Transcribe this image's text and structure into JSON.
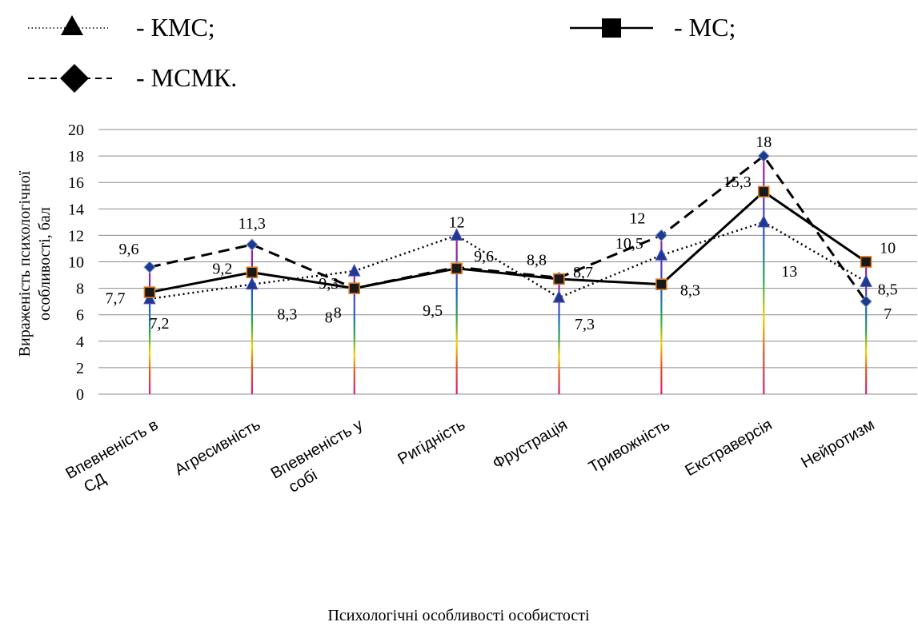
{
  "chart_data": {
    "type": "line",
    "title": "",
    "xlabel": "Психологічні особливості особистості",
    "ylabel_lines": [
      "Вираженість психологічної",
      "особливості, бал"
    ],
    "ylim": [
      0,
      20
    ],
    "yticks": [
      "0",
      "2",
      "4",
      "6",
      "8",
      "10",
      "12",
      "14",
      "16",
      "18",
      "20"
    ],
    "grid": true,
    "legend_position": "top",
    "categories": [
      [
        "Впевненість в",
        "СД"
      ],
      [
        "Агресивність"
      ],
      [
        "Впевненість у",
        "собі"
      ],
      [
        "Ригідність"
      ],
      [
        "Фрустрація"
      ],
      [
        "Тривожність"
      ],
      [
        "Екстраверсія"
      ],
      [
        "Нейротизм"
      ]
    ],
    "series": [
      {
        "legend_label": "- КМС;",
        "style": "dotted",
        "marker": "triangle",
        "color": "#000000",
        "marker_fill": "#1f3a8a",
        "values": [
          7.2,
          8.3,
          9.3,
          12,
          7.3,
          10.5,
          13,
          8.5
        ],
        "labels": [
          "7,2",
          "8,3",
          "9,3",
          "12",
          "7,3",
          "10,5",
          "13",
          "8,5"
        ]
      },
      {
        "legend_label": "- МС;",
        "style": "solid",
        "marker": "square",
        "color": "#000000",
        "marker_fill": "#1a1a1a",
        "values": [
          7.7,
          9.2,
          8,
          9.5,
          8.7,
          8.3,
          15.3,
          10
        ],
        "labels": [
          "7,7",
          "9,2",
          "8",
          "9,5",
          "8,7",
          "8,3",
          "15,3",
          "10"
        ]
      },
      {
        "legend_label": "- МСМК.",
        "style": "dashed",
        "marker": "diamond",
        "color": "#000000",
        "marker_fill": "#1f3a8a",
        "values": [
          9.6,
          11.3,
          8,
          9.6,
          8.8,
          12,
          18,
          7
        ],
        "labels": [
          "9,6",
          "11,3",
          "8",
          "9,6",
          "8,8",
          "12",
          "18",
          "7"
        ]
      }
    ]
  }
}
